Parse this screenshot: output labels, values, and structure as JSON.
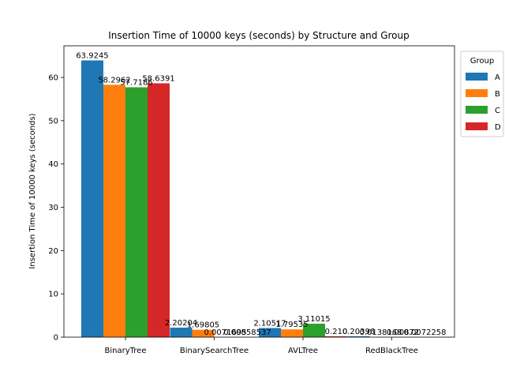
{
  "chart_data": {
    "type": "bar",
    "title": "Insertion Time of 10000 keys (seconds) by Structure and Group",
    "xlabel": "",
    "ylabel": "Insertion Time of 10000 keys (seconds)",
    "categories": [
      "BinaryTree",
      "BinarySearchTree",
      "AVLTree",
      "RedBlackTree"
    ],
    "ylim": [
      0,
      67.3
    ],
    "yticks": [
      0,
      10,
      20,
      30,
      40,
      50,
      60
    ],
    "grid": false,
    "legend": {
      "title": "Group",
      "placement": "outside-right-top"
    },
    "series": [
      {
        "name": "A",
        "color": "#1f77b4",
        "values": [
          63.9245,
          2.20204,
          2.10517,
          0.20396
        ],
        "labels": [
          "63.9245",
          "2.20204",
          "2.10517",
          "0.20396"
        ]
      },
      {
        "name": "B",
        "color": "#ff7f0e",
        "values": [
          58.2962,
          1.69805,
          1.79535,
          0.0138168
        ],
        "labels": [
          "58.2962",
          "1.69805",
          "1.79535",
          "0.0138168"
        ]
      },
      {
        "name": "C",
        "color": "#2ca02c",
        "values": [
          57.7186,
          0.0071695,
          3.11015,
          0.00872
        ],
        "labels": [
          "57.7186",
          "0.0071695",
          "3.11015",
          "0.00872"
        ]
      },
      {
        "name": "D",
        "color": "#d62728",
        "values": [
          58.6391,
          0.00858537,
          0.21,
          0.0072258
        ],
        "labels": [
          "58.6391",
          "0.00858537",
          "0.210",
          "0.0072258"
        ]
      }
    ]
  }
}
